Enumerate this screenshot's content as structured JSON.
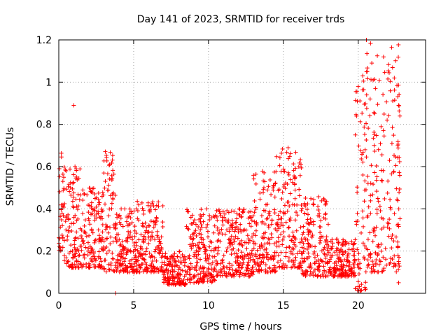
{
  "chart_data": {
    "type": "scatter",
    "title": "Day 141 of 2023, SRMTID for receiver trds",
    "xlabel": "GPS time / hours",
    "ylabel": "SRMTID / TECUs",
    "xlim": [
      0,
      24.5
    ],
    "ylim": [
      0,
      1.2
    ],
    "x_ticks": [
      0,
      5,
      10,
      15,
      20
    ],
    "x_tick_labels": [
      "0",
      "5",
      "10",
      "15",
      "20"
    ],
    "y_ticks": [
      0,
      0.2,
      0.4,
      0.6,
      0.8,
      1.0,
      1.2
    ],
    "y_tick_labels": [
      "0",
      "0.2",
      "0.4",
      "0.6",
      "0.8",
      "1",
      "1.2"
    ],
    "grid": true,
    "marker": "+",
    "series": [
      {
        "name": "SRMTID",
        "color": "#ff0000",
        "envelope": [
          {
            "x_range": [
              0.0,
              0.3
            ],
            "y_min": 0.2,
            "y_max": 0.7
          },
          {
            "x_range": [
              0.3,
              1.5
            ],
            "y_min": 0.12,
            "y_max": 0.6
          },
          {
            "x_range": [
              1.5,
              3.0
            ],
            "y_min": 0.12,
            "y_max": 0.5
          },
          {
            "x_range": [
              3.0,
              3.8
            ],
            "y_min": 0.1,
            "y_max": 0.68
          },
          {
            "x_range": [
              3.8,
              5.0
            ],
            "y_min": 0.1,
            "y_max": 0.4
          },
          {
            "x_range": [
              5.0,
              7.0
            ],
            "y_min": 0.1,
            "y_max": 0.44
          },
          {
            "x_range": [
              7.0,
              8.5
            ],
            "y_min": 0.04,
            "y_max": 0.2
          },
          {
            "x_range": [
              8.5,
              10.5
            ],
            "y_min": 0.05,
            "y_max": 0.4
          },
          {
            "x_range": [
              10.5,
              13.0
            ],
            "y_min": 0.08,
            "y_max": 0.4
          },
          {
            "x_range": [
              13.0,
              14.5
            ],
            "y_min": 0.1,
            "y_max": 0.58
          },
          {
            "x_range": [
              14.5,
              16.2
            ],
            "y_min": 0.12,
            "y_max": 0.7
          },
          {
            "x_range": [
              16.2,
              18.0
            ],
            "y_min": 0.08,
            "y_max": 0.46
          },
          {
            "x_range": [
              18.0,
              19.8
            ],
            "y_min": 0.08,
            "y_max": 0.26
          },
          {
            "x_range": [
              19.8,
              20.5
            ],
            "y_min": 0.01,
            "y_max": 1.02
          },
          {
            "x_range": [
              20.5,
              22.8
            ],
            "y_min": 0.1,
            "y_max": 1.2
          }
        ],
        "notable_points": [
          {
            "x": 1.0,
            "y": 0.89
          },
          {
            "x": 3.8,
            "y": 0.0
          },
          {
            "x": 20.3,
            "y": 1.03
          },
          {
            "x": 20.55,
            "y": 1.2
          },
          {
            "x": 21.0,
            "y": 1.01
          },
          {
            "x": 20.5,
            "y": 0.02
          },
          {
            "x": 22.7,
            "y": 0.89
          },
          {
            "x": 22.7,
            "y": 0.05
          }
        ]
      }
    ]
  }
}
